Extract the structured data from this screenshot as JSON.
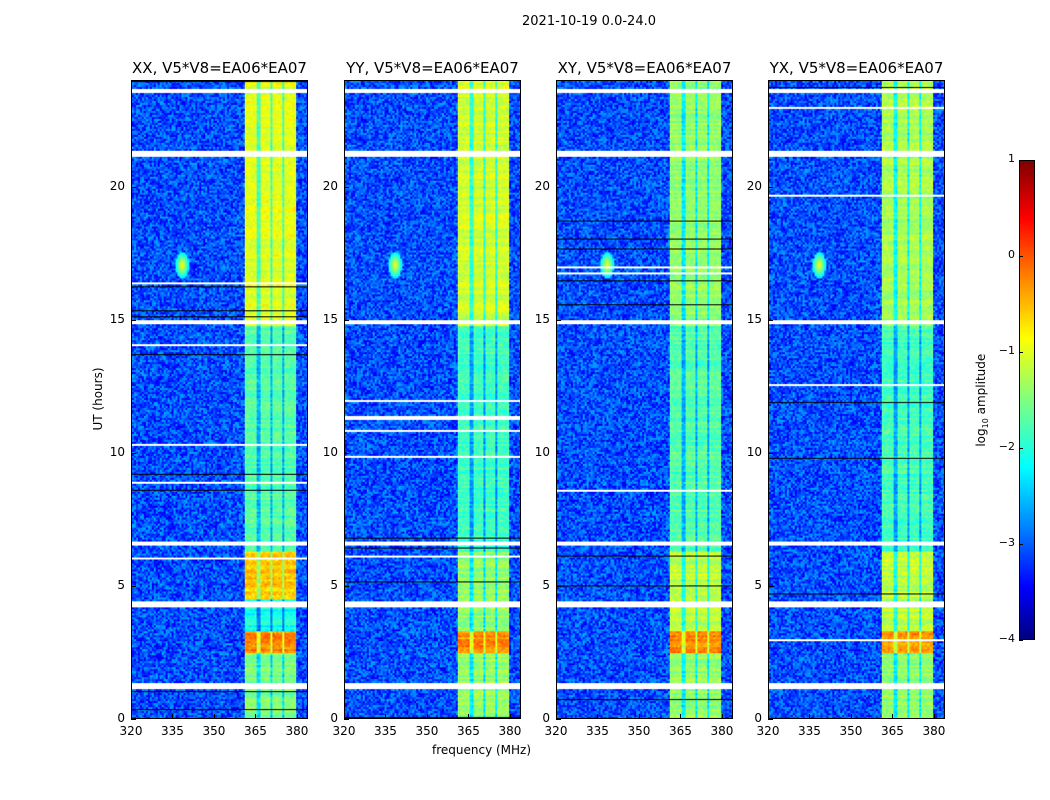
{
  "chart_data": {
    "type": "heatmap",
    "title": "2021-10-19 0.0-24.0",
    "xlabel": "frequency (MHz)",
    "ylabel": "UT (hours)",
    "xlim": [
      320,
      384
    ],
    "ylim": [
      0,
      24
    ],
    "xticks": [
      320,
      335,
      350,
      365,
      380
    ],
    "yticks": [
      0,
      5,
      10,
      15,
      20
    ],
    "colorbar": {
      "label_main": "log",
      "label_sub": "10",
      "label_rest": " amplitude",
      "range": [
        -4,
        1
      ],
      "ticks": [
        "1",
        "0",
        "−1",
        "−2",
        "−3",
        "−4"
      ],
      "colormap": "jet"
    },
    "background_level": -3.0,
    "rfi_band_mhz": [
      361,
      380
    ],
    "band_gaps_mhz": [
      366,
      370.5,
      375
    ],
    "spike": {
      "freq_mhz": 338,
      "hour": 17.1
    },
    "flagged_hours": [
      [
        1.1,
        1.35
      ],
      [
        4.2,
        4.4
      ],
      [
        6.55,
        6.7
      ],
      [
        14.85,
        15.05
      ],
      [
        21.2,
        21.4
      ],
      [
        23.6,
        23.7
      ]
    ],
    "panels": [
      {
        "title": "XX, V5*V8=EA06*EA07",
        "segments": [
          [
            0,
            2.5,
            -1.5
          ],
          [
            2.5,
            3.3,
            -0.3
          ],
          [
            3.3,
            4.5,
            -2.0
          ],
          [
            4.5,
            6.3,
            -0.6
          ],
          [
            6.3,
            14.8,
            -1.7
          ],
          [
            14.8,
            24,
            -1.0
          ]
        ]
      },
      {
        "title": "YY, V5*V8=EA06*EA07",
        "segments": [
          [
            0,
            2.5,
            -1.4
          ],
          [
            2.5,
            3.3,
            -0.3
          ],
          [
            3.3,
            6.3,
            -1.4
          ],
          [
            6.3,
            14.8,
            -1.8
          ],
          [
            14.8,
            24,
            -1.1
          ]
        ]
      },
      {
        "title": "XY, V5*V8=EA06*EA07",
        "segments": [
          [
            0,
            2.5,
            -1.4
          ],
          [
            2.5,
            3.3,
            -0.3
          ],
          [
            3.3,
            6.3,
            -1.2
          ],
          [
            6.3,
            14.8,
            -1.7
          ],
          [
            14.8,
            24,
            -1.4
          ]
        ]
      },
      {
        "title": "YX, V5*V8=EA06*EA07",
        "segments": [
          [
            0,
            2.5,
            -1.4
          ],
          [
            2.5,
            3.3,
            -0.4
          ],
          [
            3.3,
            6.3,
            -1.2
          ],
          [
            6.3,
            14.8,
            -1.8
          ],
          [
            14.8,
            24,
            -1.3
          ]
        ]
      }
    ]
  }
}
